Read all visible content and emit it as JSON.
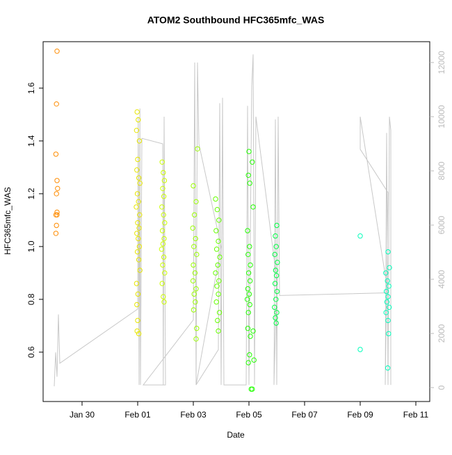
{
  "chart_data": {
    "type": "scatter",
    "title": "ATOM2 Southbound HFC365mfc_WAS",
    "x_label": "Date",
    "y_label": "HFC365mfc_WAS",
    "xlim": [
      28.6,
      42.5
    ],
    "ylim": [
      0.413,
      1.776
    ],
    "y2lim": [
      -513,
      12769
    ],
    "xticks": [
      {
        "value": 30,
        "label": "Jan 30"
      },
      {
        "value": 32,
        "label": "Feb 01"
      },
      {
        "value": 34,
        "label": "Feb 03"
      },
      {
        "value": 36,
        "label": "Feb 05"
      },
      {
        "value": 38,
        "label": "Feb 07"
      },
      {
        "value": 40,
        "label": "Feb 09"
      },
      {
        "value": 42,
        "label": "Feb 11"
      }
    ],
    "yticks": [
      0.6,
      0.8,
      {
        "value": 1,
        "label": "1.0"
      },
      1.2,
      1.4,
      1.6
    ],
    "y2ticks": [
      0,
      2000,
      4000,
      6000,
      8000,
      10000,
      12000
    ],
    "series": [
      {
        "color": "#ff8c00",
        "x": [
          29.1,
          29.08,
          29.06,
          29.1,
          29.12,
          29.08,
          29.1,
          29.06,
          29.1,
          29.08,
          29.06
        ],
        "values": [
          1.74,
          1.54,
          1.35,
          1.25,
          1.22,
          1.2,
          1.13,
          1.12,
          1.12,
          1.08,
          1.05
        ]
      },
      {
        "color": "#e6e600",
        "x": [
          31.98,
          32.02,
          31.96,
          32.06,
          32.0,
          31.97,
          32.04,
          32.08,
          31.99,
          32.03,
          31.95,
          32.07,
          32.0,
          32.05,
          31.97,
          32.02,
          32.06,
          31.99,
          32.04,
          32.08,
          31.96,
          32.01,
          31.97,
          32.0,
          31.98,
          32.04
        ],
        "values": [
          1.51,
          1.48,
          1.44,
          1.4,
          1.33,
          1.29,
          1.26,
          1.24,
          1.2,
          1.17,
          1.15,
          1.12,
          1.09,
          1.07,
          1.05,
          1.03,
          1.0,
          0.98,
          0.95,
          0.91,
          0.86,
          0.82,
          0.78,
          0.72,
          0.68,
          0.67
        ]
      },
      {
        "color": "#ccff00",
        "x": [
          32.88,
          32.92,
          32.96,
          32.9,
          32.94,
          32.87,
          32.93,
          32.97,
          32.89,
          32.95,
          32.91,
          32.86,
          32.94,
          32.9,
          32.97,
          32.88,
          32.92,
          32.95
        ],
        "values": [
          1.32,
          1.28,
          1.25,
          1.22,
          1.19,
          1.15,
          1.12,
          1.09,
          1.06,
          1.03,
          1.01,
          0.99,
          0.96,
          0.93,
          0.9,
          0.86,
          0.81,
          0.79
        ]
      },
      {
        "color": "#99ff00",
        "x": [
          34.15,
          34.0,
          34.1,
          34.04,
          33.98,
          34.08,
          34.02,
          34.12,
          34.0,
          34.06,
          33.99,
          34.1,
          34.03,
          34.07,
          34.01,
          34.12,
          34.1
        ],
        "values": [
          1.37,
          1.23,
          1.17,
          1.12,
          1.07,
          1.03,
          1.0,
          0.97,
          0.93,
          0.9,
          0.87,
          0.84,
          0.82,
          0.79,
          0.76,
          0.69,
          0.65
        ]
      },
      {
        "color": "#66ff00",
        "x": [
          34.8,
          34.86,
          34.92,
          34.82,
          34.9,
          34.84,
          34.95,
          34.88,
          34.8,
          34.92,
          34.85,
          34.9,
          34.83,
          34.94,
          34.87,
          34.9
        ],
        "values": [
          1.18,
          1.14,
          1.1,
          1.06,
          1.02,
          0.99,
          0.96,
          0.93,
          0.9,
          0.87,
          0.85,
          0.82,
          0.79,
          0.75,
          0.72,
          0.68
        ]
      },
      {
        "color": "#22ff00",
        "x": [
          36.0,
          35.98,
          36.03,
          35.95,
          36.02,
          35.97,
          36.05,
          35.99,
          36.04,
          35.96,
          36.01,
          35.94,
          36.03,
          35.98,
          35.96,
          36.05,
          36.02,
          35.98,
          36.08,
          36.15,
          36.12,
          36.18,
          36.12,
          36.15
        ],
        "values": [
          1.36,
          1.27,
          1.24,
          1.06,
          1.0,
          0.97,
          0.93,
          0.9,
          0.87,
          0.84,
          0.82,
          0.8,
          0.78,
          0.75,
          0.69,
          0.66,
          0.59,
          0.56,
          0.46,
          1.15,
          1.32,
          0.57,
          0.46,
          0.68
        ]
      },
      {
        "color": "#00ff44",
        "x": [
          37.0,
          36.95,
          36.98,
          36.93,
          37.02,
          36.96,
          36.99,
          36.94,
          37.01,
          36.97,
          36.92,
          37.0,
          36.95,
          36.98
        ],
        "values": [
          1.08,
          1.04,
          1.0,
          0.97,
          0.94,
          0.91,
          0.89,
          0.86,
          0.83,
          0.8,
          0.77,
          0.75,
          0.73,
          0.71
        ]
      },
      {
        "color": "#00ffbb",
        "x": [
          41.0,
          41.05,
          40.92,
          40.98,
          41.03,
          40.94,
          41.0,
          40.96,
          41.04,
          40.93,
          41.0,
          41.02,
          40.99,
          40.0,
          40.0
        ],
        "values": [
          0.98,
          0.92,
          0.9,
          0.87,
          0.85,
          0.83,
          0.81,
          0.79,
          0.77,
          0.75,
          0.72,
          0.67,
          0.54,
          1.04,
          0.61
        ]
      },
      {
        "type": "line",
        "axis": "y2",
        "color": "#c8c8c8",
        "x": [
          29.0,
          29.05,
          29.1,
          29.15,
          29.2,
          32.0,
          32.02,
          32.05,
          32.08,
          32.1,
          32.15,
          32.9,
          32.92,
          32.95,
          33.0,
          32.2,
          34.0,
          34.05,
          34.1,
          34.15,
          34.2,
          35.0,
          34.1,
          34.9,
          34.95,
          35.0,
          35.05,
          35.1,
          35.9,
          35.95,
          36.0,
          36.1,
          36.15,
          36.2,
          36.25,
          37.0,
          36.9,
          36.95,
          37.0,
          37.05,
          37.1,
          41.0,
          40.0,
          40.0,
          41.0,
          40.9,
          40.95,
          41.0,
          41.05,
          41.1,
          41.1
        ],
        "values": [
          50,
          1300,
          400,
          2700,
          900,
          2900,
          10000,
          100,
          10300,
          100,
          9200,
          9000,
          100,
          10000,
          100,
          100,
          2500,
          12000,
          100,
          12000,
          9000,
          5200,
          100,
          1400,
          10500,
          100,
          10700,
          100,
          100,
          10400,
          100,
          11100,
          12300,
          100,
          10000,
          4000,
          100,
          9900,
          100,
          10000,
          3400,
          3500,
          10000,
          8800,
          7200,
          100,
          9400,
          100,
          10000,
          9500,
          100
        ]
      }
    ]
  }
}
